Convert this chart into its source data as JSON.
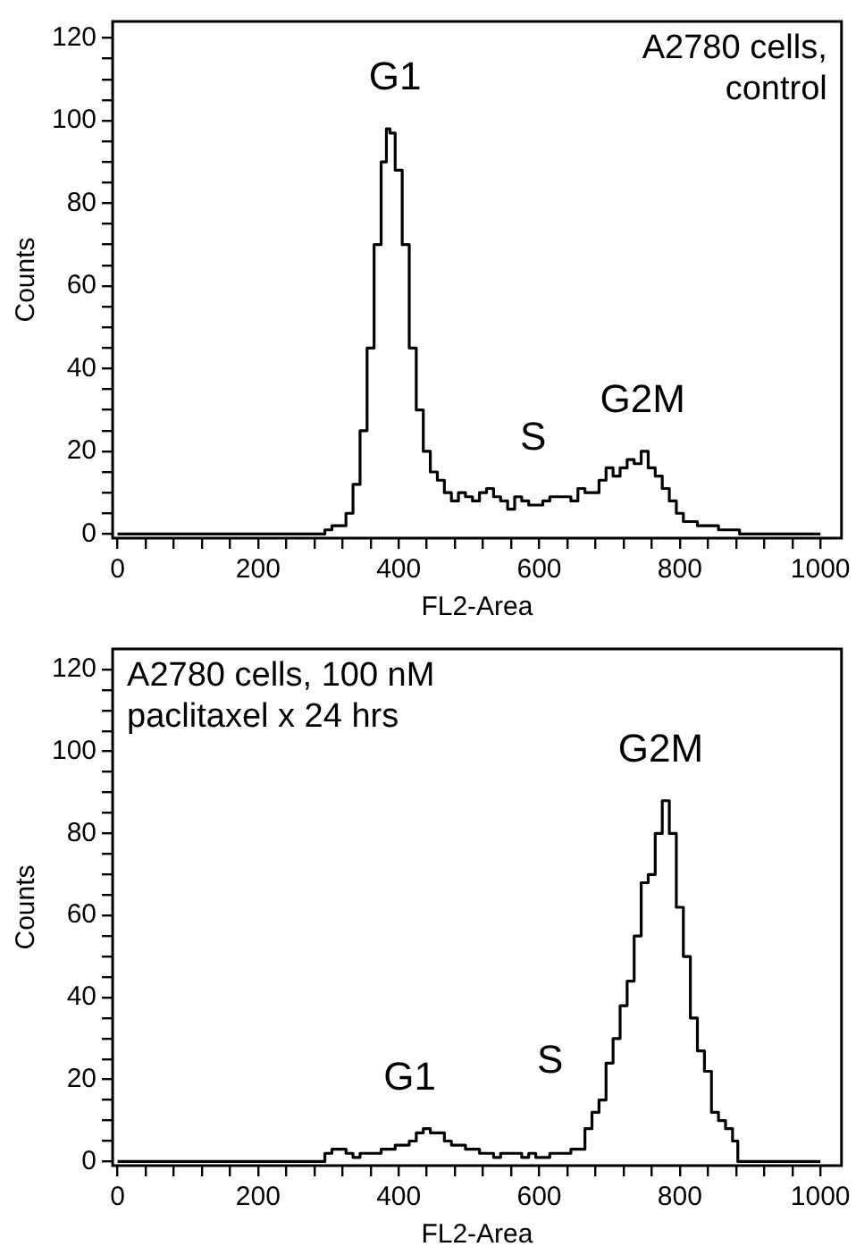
{
  "chart_data": [
    {
      "type": "step",
      "title": "A2780 cells,\ncontrol",
      "xlabel": "FL2-Area",
      "ylabel": "Counts",
      "x": [
        0,
        290,
        300,
        310,
        320,
        330,
        340,
        350,
        360,
        370,
        380,
        385,
        390,
        400,
        410,
        420,
        430,
        440,
        450,
        460,
        470,
        480,
        490,
        500,
        510,
        520,
        530,
        540,
        550,
        560,
        570,
        580,
        590,
        600,
        610,
        620,
        630,
        640,
        650,
        660,
        670,
        680,
        690,
        700,
        710,
        720,
        730,
        740,
        750,
        760,
        770,
        780,
        790,
        800,
        810,
        820,
        830,
        840,
        850,
        860,
        870,
        880,
        890,
        1000
      ],
      "series": [
        {
          "color": "#000000",
          "values": [
            0,
            0,
            1,
            2,
            2,
            5,
            12,
            25,
            45,
            70,
            90,
            98,
            97,
            88,
            70,
            45,
            30,
            20,
            15,
            13,
            10,
            8,
            10,
            9,
            8,
            10,
            11,
            9,
            8,
            6,
            9,
            8,
            7,
            7,
            8,
            9,
            9,
            9,
            8,
            11,
            10,
            10,
            13,
            16,
            14,
            16,
            18,
            17,
            20,
            16,
            14,
            11,
            8,
            5,
            3,
            3,
            2,
            2,
            2,
            1,
            1,
            1,
            0,
            0
          ]
        }
      ],
      "xlim": [
        -7,
        1030
      ],
      "ylim": [
        -1,
        124
      ],
      "xticks": [
        0,
        {
          "value": 40,
          "label": null
        },
        {
          "value": 80,
          "label": null
        },
        {
          "value": 120,
          "label": null
        },
        {
          "value": 160,
          "label": null
        },
        200,
        {
          "value": 240,
          "label": null
        },
        {
          "value": 280,
          "label": null
        },
        {
          "value": 320,
          "label": null
        },
        {
          "value": 360,
          "label": null
        },
        400,
        {
          "value": 440,
          "label": null
        },
        {
          "value": 480,
          "label": null
        },
        {
          "value": 520,
          "label": null
        },
        {
          "value": 560,
          "label": null
        },
        600,
        {
          "value": 640,
          "label": null
        },
        {
          "value": 680,
          "label": null
        },
        {
          "value": 720,
          "label": null
        },
        {
          "value": 760,
          "label": null
        },
        800,
        {
          "value": 840,
          "label": null
        },
        {
          "value": 880,
          "label": null
        },
        {
          "value": 920,
          "label": null
        },
        {
          "value": 960,
          "label": null
        },
        1000
      ],
      "yticks": [
        0,
        {
          "value": 5,
          "label": null
        },
        {
          "value": 10,
          "label": null
        },
        {
          "value": 15,
          "label": null
        },
        20,
        {
          "value": 25,
          "label": null
        },
        {
          "value": 30,
          "label": null
        },
        {
          "value": 35,
          "label": null
        },
        40,
        {
          "value": 45,
          "label": null
        },
        {
          "value": 50,
          "label": null
        },
        {
          "value": 55,
          "label": null
        },
        60,
        {
          "value": 65,
          "label": null
        },
        {
          "value": 70,
          "label": null
        },
        {
          "value": 75,
          "label": null
        },
        80,
        {
          "value": 85,
          "label": null
        },
        {
          "value": 90,
          "label": null
        },
        {
          "value": 95,
          "label": null
        },
        100,
        {
          "value": 105,
          "label": null
        },
        {
          "value": 110,
          "label": null
        },
        {
          "value": 115,
          "label": null
        },
        120
      ],
      "grid": false,
      "legend": false,
      "annotations": [
        "G1",
        "S",
        "G2M"
      ]
    },
    {
      "type": "step",
      "title": "A2780 cells, 100 nM\npaclitaxel x 24 hrs",
      "xlabel": "FL2-Area",
      "ylabel": "Counts",
      "x": [
        0,
        290,
        300,
        310,
        320,
        330,
        340,
        350,
        360,
        370,
        380,
        390,
        400,
        410,
        420,
        430,
        440,
        450,
        460,
        470,
        480,
        490,
        500,
        510,
        520,
        530,
        540,
        550,
        560,
        570,
        580,
        590,
        600,
        610,
        620,
        630,
        640,
        650,
        660,
        670,
        680,
        690,
        700,
        710,
        720,
        730,
        740,
        750,
        760,
        770,
        780,
        790,
        800,
        810,
        820,
        830,
        840,
        850,
        860,
        870,
        880,
        885,
        1000
      ],
      "series": [
        {
          "color": "#000000",
          "values": [
            0,
            0,
            2,
            3,
            3,
            2,
            1,
            2,
            2,
            2,
            3,
            3,
            4,
            4,
            5,
            7,
            8,
            7,
            7,
            5,
            4,
            4,
            3,
            3,
            2,
            2,
            1,
            2,
            2,
            2,
            1,
            2,
            1,
            1,
            2,
            2,
            2,
            3,
            3,
            8,
            12,
            15,
            24,
            30,
            38,
            44,
            55,
            68,
            70,
            80,
            88,
            80,
            62,
            50,
            35,
            27,
            22,
            12,
            10,
            8,
            5,
            0,
            0
          ]
        }
      ],
      "xlim": [
        -7,
        1030
      ],
      "ylim": [
        -1,
        125
      ],
      "xticks": [
        0,
        {
          "value": 40,
          "label": null
        },
        {
          "value": 80,
          "label": null
        },
        {
          "value": 120,
          "label": null
        },
        {
          "value": 160,
          "label": null
        },
        200,
        {
          "value": 240,
          "label": null
        },
        {
          "value": 280,
          "label": null
        },
        {
          "value": 320,
          "label": null
        },
        {
          "value": 360,
          "label": null
        },
        400,
        {
          "value": 440,
          "label": null
        },
        {
          "value": 480,
          "label": null
        },
        {
          "value": 520,
          "label": null
        },
        {
          "value": 560,
          "label": null
        },
        600,
        {
          "value": 640,
          "label": null
        },
        {
          "value": 680,
          "label": null
        },
        {
          "value": 720,
          "label": null
        },
        {
          "value": 760,
          "label": null
        },
        800,
        {
          "value": 840,
          "label": null
        },
        {
          "value": 880,
          "label": null
        },
        {
          "value": 920,
          "label": null
        },
        {
          "value": 960,
          "label": null
        },
        1000
      ],
      "yticks": [
        0,
        {
          "value": 5,
          "label": null
        },
        {
          "value": 10,
          "label": null
        },
        {
          "value": 15,
          "label": null
        },
        20,
        {
          "value": 25,
          "label": null
        },
        {
          "value": 30,
          "label": null
        },
        {
          "value": 35,
          "label": null
        },
        40,
        {
          "value": 45,
          "label": null
        },
        {
          "value": 50,
          "label": null
        },
        {
          "value": 55,
          "label": null
        },
        60,
        {
          "value": 65,
          "label": null
        },
        {
          "value": 70,
          "label": null
        },
        {
          "value": 75,
          "label": null
        },
        80,
        {
          "value": 85,
          "label": null
        },
        {
          "value": 90,
          "label": null
        },
        {
          "value": 95,
          "label": null
        },
        100,
        {
          "value": 105,
          "label": null
        },
        {
          "value": 110,
          "label": null
        },
        {
          "value": 115,
          "label": null
        },
        120
      ],
      "grid": false,
      "legend": false,
      "annotations": [
        "G1",
        "S",
        "G2M"
      ]
    }
  ]
}
